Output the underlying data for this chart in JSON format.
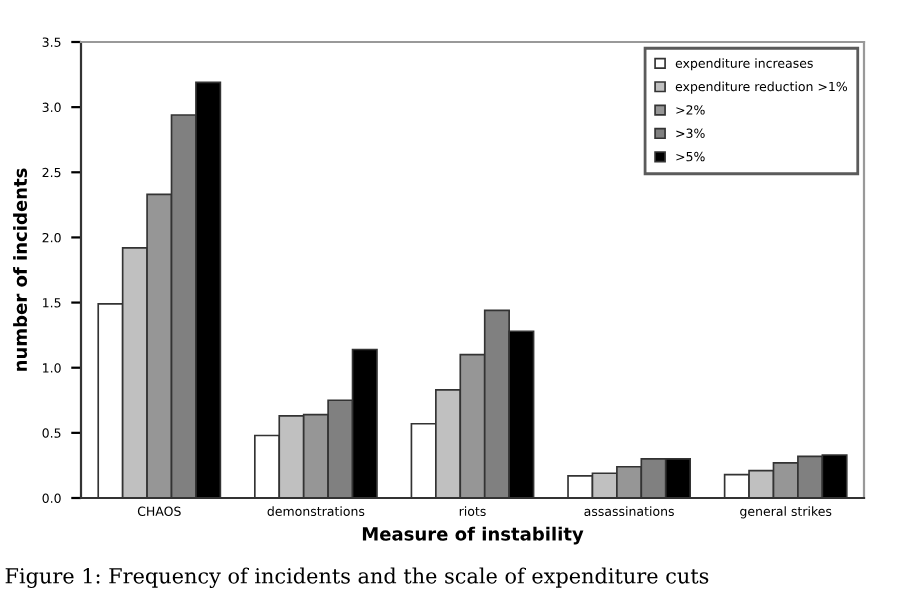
{
  "chart_data": {
    "type": "bar",
    "xlabel": "Measure of instability",
    "ylabel": "number of incidents",
    "categories": [
      "CHAOS",
      "demonstrations",
      "riots",
      "assassinations",
      "general strikes"
    ],
    "series": [
      {
        "name": "expenditure increases",
        "color": "#ffffff",
        "values": [
          1.49,
          0.48,
          0.57,
          0.17,
          0.18
        ]
      },
      {
        "name": "expenditure reduction >1%",
        "color": "#c0c0c0",
        "values": [
          1.92,
          0.63,
          0.83,
          0.19,
          0.21
        ]
      },
      {
        "name": ">2%",
        "color": "#969696",
        "values": [
          2.33,
          0.64,
          1.1,
          0.24,
          0.27
        ]
      },
      {
        "name": ">3%",
        "color": "#808080",
        "values": [
          2.94,
          0.75,
          1.44,
          0.3,
          0.32
        ]
      },
      {
        "name": ">5%",
        "color": "#000000",
        "values": [
          3.19,
          1.14,
          1.28,
          0.3,
          0.33
        ]
      }
    ],
    "ylim": [
      0,
      3.5
    ],
    "yticks": [
      {
        "value": 0,
        "label": "0.0"
      },
      {
        "value": 0.5,
        "label": "0.5"
      },
      {
        "value": 1,
        "label": "1.0"
      },
      {
        "value": 1.5,
        "label": "1.5"
      },
      {
        "value": 2,
        "label": "2.0"
      },
      {
        "value": 2.5,
        "label": "2.5"
      },
      {
        "value": 3,
        "label": "3.0"
      },
      {
        "value": 3.5,
        "label": "3.5"
      }
    ],
    "grid": false,
    "legend": "top right",
    "annotations": [
      "Figure 1: Frequency of incidents and the scale of expenditure cuts"
    ]
  }
}
